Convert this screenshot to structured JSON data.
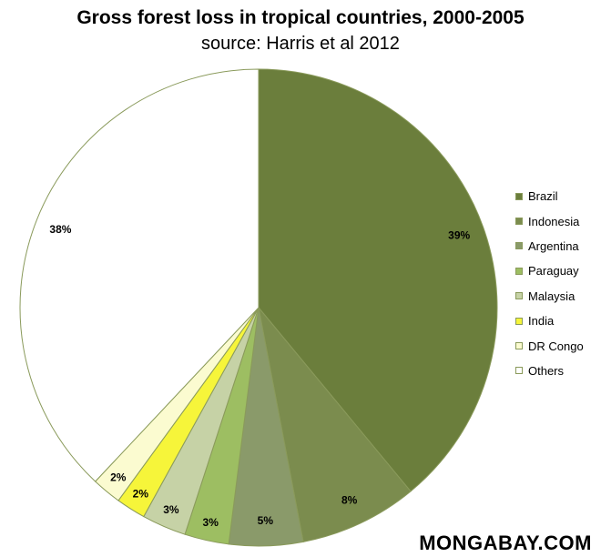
{
  "chart_data": {
    "type": "pie",
    "title": "Gross forest loss in tropical countries, 2000-2005",
    "subtitle": "source: Harris et al 2012",
    "legend_position": "right",
    "slices": [
      {
        "name": "Brazil",
        "value": 39,
        "label": "39%",
        "color": "#6b7e3c"
      },
      {
        "name": "Indonesia",
        "value": 8,
        "label": "8%",
        "color": "#7b8c4e"
      },
      {
        "name": "Argentina",
        "value": 5,
        "label": "5%",
        "color": "#8a9a6a"
      },
      {
        "name": "Paraguay",
        "value": 3,
        "label": "3%",
        "color": "#9dbe62"
      },
      {
        "name": "Malaysia",
        "value": 3,
        "label": "3%",
        "color": "#c6d2a6"
      },
      {
        "name": "India",
        "value": 2,
        "label": "2%",
        "color": "#f6f53a"
      },
      {
        "name": "DR Congo",
        "value": 2,
        "label": "2%",
        "color": "#fbfbd0"
      },
      {
        "name": "Others",
        "value": 38,
        "label": "38%",
        "color": "#ffffff"
      }
    ]
  },
  "watermark": "MONGABAY.COM"
}
